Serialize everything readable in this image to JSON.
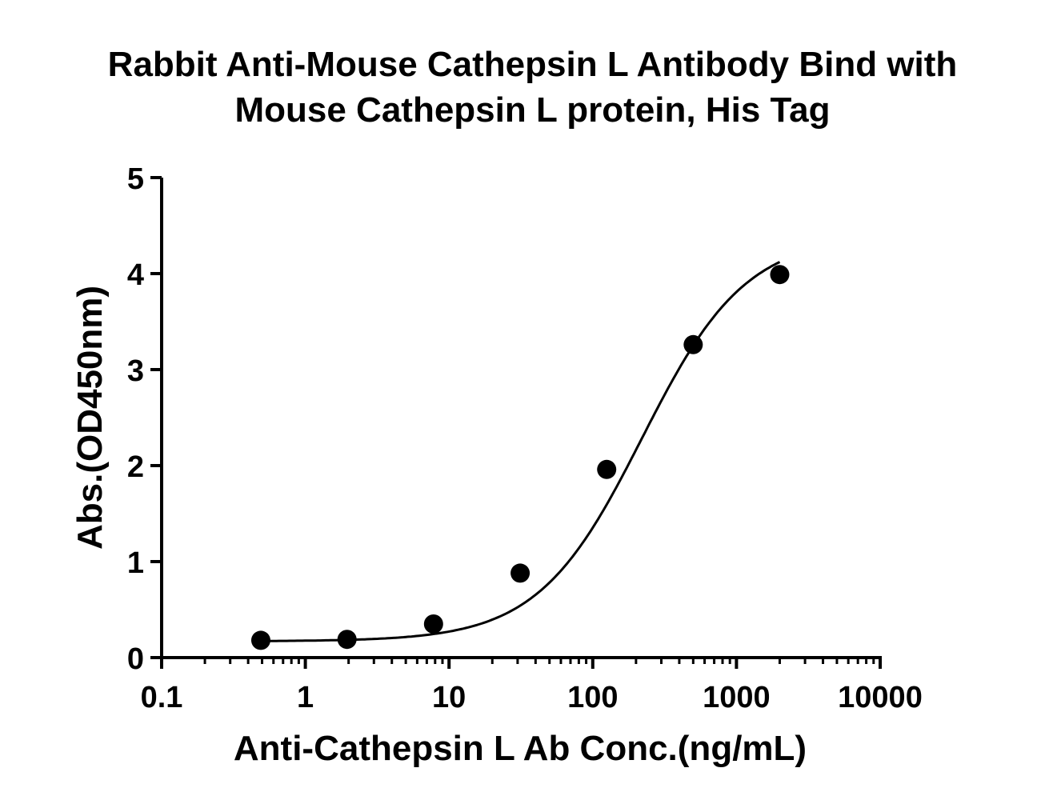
{
  "chart_data": {
    "type": "scatter",
    "title_lines": [
      "Rabbit Anti-Mouse Cathepsin L Antibody Bind with",
      "Mouse Cathepsin L protein, His Tag"
    ],
    "xlabel": "Anti-Cathepsin L Ab Conc.(ng/mL)",
    "ylabel": "Abs.(OD450nm)",
    "x_scale": "log",
    "xlim": [
      0.1,
      10000
    ],
    "ylim": [
      0,
      5
    ],
    "x_ticks": [
      0.1,
      1,
      10,
      100,
      1000,
      10000
    ],
    "x_tick_labels": [
      "0.1",
      "1",
      "10",
      "100",
      "1000",
      "10000"
    ],
    "y_ticks": [
      0,
      1,
      2,
      3,
      4,
      5
    ],
    "y_tick_labels": [
      "0",
      "1",
      "2",
      "3",
      "4",
      "5"
    ],
    "grid": false,
    "series": [
      {
        "x": [
          0.49,
          1.95,
          7.8,
          31.25,
          125,
          500,
          2000
        ],
        "y": [
          0.18,
          0.19,
          0.35,
          0.88,
          1.96,
          3.26,
          3.99
        ],
        "color": "#000000",
        "marker": "circle",
        "fit": "four-parameter logistic curve"
      }
    ]
  }
}
